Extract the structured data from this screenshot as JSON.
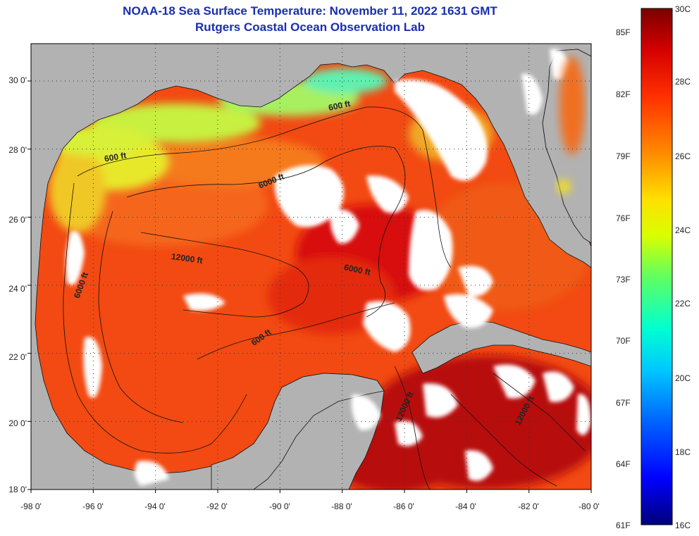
{
  "title": "NOAA-18 Sea Surface Temperature:  November 11, 2022 1631 GMT",
  "subtitle": "Rutgers Coastal Ocean Observation Lab",
  "lat_labels": [
    "30 0'",
    "28 0'",
    "26 0'",
    "24 0'",
    "22 0'",
    "20 0'",
    "18 0'"
  ],
  "lon_labels": [
    "-98 0'",
    "-96 0'",
    "-94 0'",
    "-92 0'",
    "-90 0'",
    "-88 0'",
    "-86 0'",
    "-84 0'",
    "-82 0'",
    "-80 0'"
  ],
  "depth_contours": [
    "600 ft",
    "600 ft",
    "6000 ft",
    "12000 ft",
    "6000 ft",
    "6000 ft",
    "600 ft",
    "12000 ft",
    "12000 ft"
  ],
  "colorbar": {
    "f_labels": [
      "85F",
      "82F",
      "79F",
      "76F",
      "73F",
      "70F",
      "67F",
      "64F",
      "61F"
    ],
    "c_labels": [
      "30C",
      "28C",
      "26C",
      "24C",
      "22C",
      "20C",
      "18C",
      "16C"
    ],
    "min_c": 16,
    "max_c": 30,
    "colors": [
      "#00007a",
      "#0000ff",
      "#0064ff",
      "#00c8ff",
      "#00ffd0",
      "#60ff60",
      "#d8ff00",
      "#ffe000",
      "#ff8a00",
      "#ff3000",
      "#d40000",
      "#7a0000"
    ]
  },
  "colors": {
    "land": "#b2b2b2",
    "cloud": "#ffffff",
    "title": "#1a2eb0",
    "sst_main": "#f24a12",
    "sst_warm": "#d81010",
    "sst_hot": "#b80c0c",
    "sst_coastal": "#d6ef2a"
  }
}
